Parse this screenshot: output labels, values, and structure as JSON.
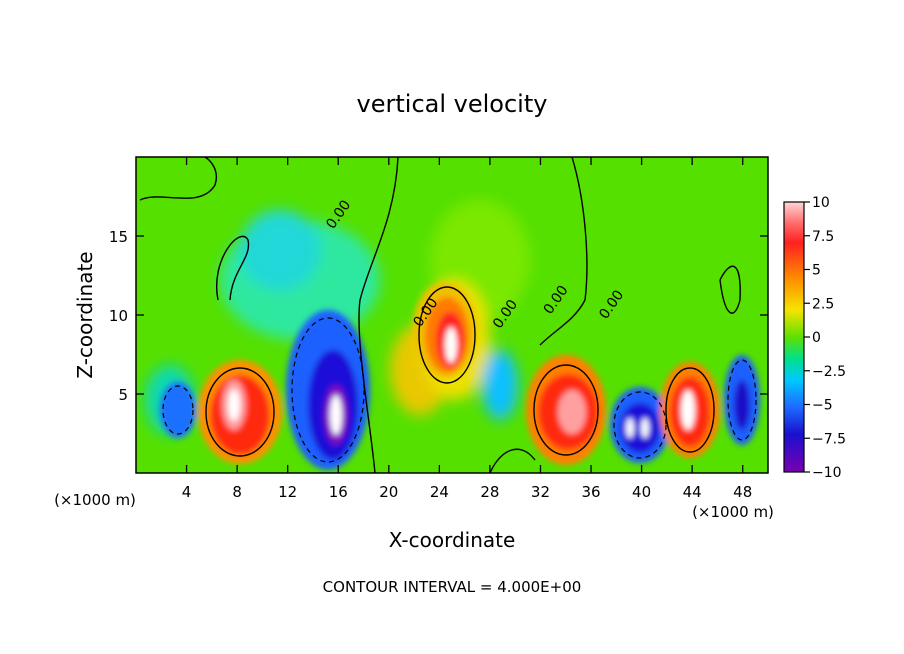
{
  "chart_data": {
    "type": "heatmap",
    "title": "vertical velocity",
    "xlabel": "X-coordinate",
    "ylabel": "Z-coordinate",
    "x_unit_left": "(×1000 m)",
    "x_unit_right": "(×1000 m)",
    "xlim": [
      0,
      50
    ],
    "ylim": [
      0,
      20
    ],
    "x_ticks": [
      4,
      8,
      12,
      16,
      20,
      24,
      28,
      32,
      36,
      40,
      44,
      48
    ],
    "y_ticks": [
      5,
      10,
      15
    ],
    "footer": "CONTOUR INTERVAL = 4.000E+00",
    "colorbar": {
      "range": [
        -10,
        10
      ],
      "ticks": [
        "10",
        "7.5",
        "5",
        "2.5",
        "0",
        "−2.5",
        "−5",
        "−7.5",
        "−10"
      ],
      "colors": [
        "#ffd6d6",
        "#ff2a2a",
        "#ff7a00",
        "#f6e000",
        "#5fe000",
        "#00e07a",
        "#00c8ff",
        "#1e5aff",
        "#1a00c8",
        "#7a00b0"
      ]
    },
    "contour_labels": [
      {
        "text": "0.00",
        "x": 16.3,
        "y": 16.2
      },
      {
        "text": "0.00",
        "x": 23.2,
        "y": 10.0
      },
      {
        "text": "0.00",
        "x": 29.5,
        "y": 9.9
      },
      {
        "text": "0.00",
        "x": 33.5,
        "y": 10.8
      },
      {
        "text": "0.00",
        "x": 37.9,
        "y": 10.5
      }
    ],
    "features": [
      {
        "kind": "updraft",
        "x": 8,
        "z": 4,
        "peak": 10
      },
      {
        "kind": "downdraft",
        "x": 16,
        "z": 4,
        "peak": -10
      },
      {
        "kind": "updraft",
        "x": 24.5,
        "z": 8,
        "peak": 10
      },
      {
        "kind": "updraft",
        "x": 34,
        "z": 4,
        "peak": 9
      },
      {
        "kind": "downdraft",
        "x": 39.5,
        "z": 3,
        "peak": -10
      },
      {
        "kind": "updraft",
        "x": 43.5,
        "z": 4,
        "peak": 10
      },
      {
        "kind": "downdraft",
        "x": 47.5,
        "z": 4,
        "peak": -8
      },
      {
        "kind": "downdraft",
        "x": 2.5,
        "z": 4,
        "peak": -5
      }
    ]
  }
}
